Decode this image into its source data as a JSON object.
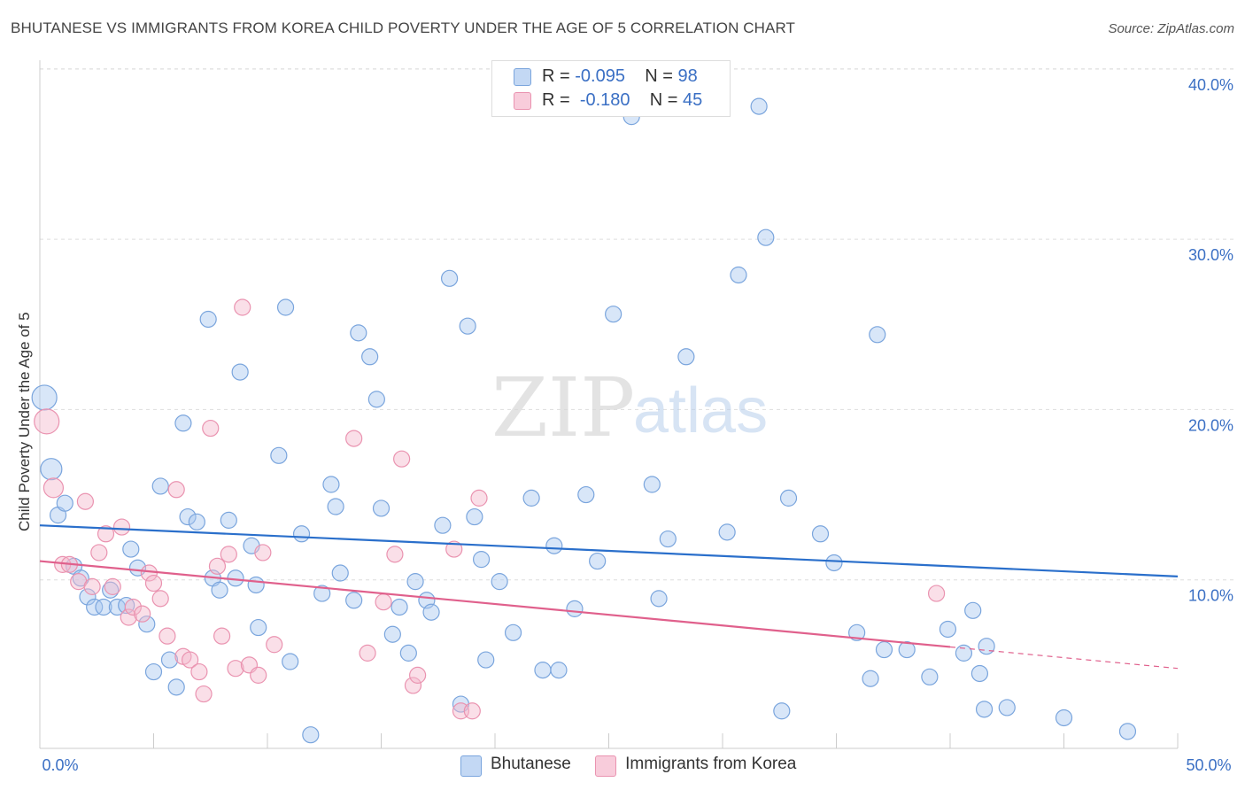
{
  "title": "BHUTANESE VS IMMIGRANTS FROM KOREA CHILD POVERTY UNDER THE AGE OF 5 CORRELATION CHART",
  "source": "Source: ZipAtlas.com",
  "watermark": {
    "zip": "ZIP",
    "atlas": "atlas"
  },
  "legend_top": {
    "rows": [
      {
        "r_label": "R =",
        "r_value": "-0.095",
        "n_label": "N =",
        "n_value": "98"
      },
      {
        "r_label": "R =",
        "r_value": "-0.180",
        "n_label": "N =",
        "n_value": "45"
      }
    ]
  },
  "legend_bottom": {
    "series1": "Bhutanese",
    "series2": "Immigrants from Korea"
  },
  "colors": {
    "blue_fill": "#a9c8f0",
    "blue_stroke": "#7aa5dd",
    "blue_line": "#2a6fcb",
    "pink_fill": "#f5b8cb",
    "pink_stroke": "#ea93b0",
    "pink_line": "#e0608c",
    "tick_label": "#3a6fc4",
    "grid": "#dddddd"
  },
  "chart_data": {
    "type": "scatter",
    "title": "BHUTANESE VS IMMIGRANTS FROM KOREA CHILD POVERTY UNDER THE AGE OF 5 CORRELATION CHART",
    "xlabel": "",
    "ylabel": "Child Poverty Under the Age of 5",
    "xlim": [
      0,
      50
    ],
    "ylim": [
      0,
      40
    ],
    "x_tick_labels": [
      "0.0%",
      "50.0%"
    ],
    "y_ticks": [
      10,
      20,
      30,
      40
    ],
    "y_tick_labels": [
      "10.0%",
      "20.0%",
      "30.0%",
      "40.0%"
    ],
    "grid": true,
    "legend_position": "top-center",
    "series": [
      {
        "name": "Bhutanese",
        "r": -0.095,
        "n": 98,
        "trend": {
          "x": [
            0,
            50
          ],
          "y": [
            13.2,
            10.2
          ],
          "dashed_from": null
        },
        "points": [
          [
            0.2,
            20.7,
            14
          ],
          [
            0.5,
            16.5,
            12
          ],
          [
            0.8,
            13.8,
            9
          ],
          [
            1.1,
            14.5,
            9
          ],
          [
            1.5,
            10.8,
            9
          ],
          [
            1.8,
            10.1,
            9
          ],
          [
            2.1,
            9.0,
            9
          ],
          [
            2.4,
            8.4,
            9
          ],
          [
            2.8,
            8.4,
            9
          ],
          [
            3.1,
            9.4,
            9
          ],
          [
            3.4,
            8.4,
            9
          ],
          [
            3.8,
            8.5,
            9
          ],
          [
            4.0,
            11.8,
            9
          ],
          [
            4.3,
            10.7,
            9
          ],
          [
            4.7,
            7.4,
            9
          ],
          [
            5.0,
            4.6,
            9
          ],
          [
            5.3,
            15.5,
            9
          ],
          [
            5.7,
            5.3,
            9
          ],
          [
            6.0,
            3.7,
            9
          ],
          [
            6.3,
            19.2,
            9
          ],
          [
            6.5,
            13.7,
            9
          ],
          [
            6.9,
            13.4,
            9
          ],
          [
            7.4,
            25.3,
            9
          ],
          [
            7.6,
            10.1,
            9
          ],
          [
            7.9,
            9.4,
            9
          ],
          [
            8.3,
            13.5,
            9
          ],
          [
            8.6,
            10.1,
            9
          ],
          [
            8.8,
            22.2,
            9
          ],
          [
            9.3,
            12.0,
            9
          ],
          [
            9.5,
            9.7,
            9
          ],
          [
            9.6,
            7.2,
            9
          ],
          [
            10.5,
            17.3,
            9
          ],
          [
            10.8,
            26.0,
            9
          ],
          [
            11.0,
            5.2,
            9
          ],
          [
            11.5,
            12.7,
            9
          ],
          [
            11.9,
            0.9,
            9
          ],
          [
            12.4,
            9.2,
            9
          ],
          [
            12.8,
            15.6,
            9
          ],
          [
            13.0,
            14.3,
            9
          ],
          [
            13.2,
            10.4,
            9
          ],
          [
            13.8,
            8.8,
            9
          ],
          [
            14.0,
            24.5,
            9
          ],
          [
            14.5,
            23.1,
            9
          ],
          [
            14.8,
            20.6,
            9
          ],
          [
            15.0,
            14.2,
            9
          ],
          [
            15.5,
            6.8,
            9
          ],
          [
            15.8,
            8.4,
            9
          ],
          [
            16.2,
            5.7,
            9
          ],
          [
            16.5,
            9.9,
            9
          ],
          [
            17.0,
            8.8,
            9
          ],
          [
            17.2,
            8.1,
            9
          ],
          [
            17.7,
            13.2,
            9
          ],
          [
            18.0,
            27.7,
            9
          ],
          [
            18.5,
            2.7,
            9
          ],
          [
            18.8,
            24.9,
            9
          ],
          [
            19.1,
            13.7,
            9
          ],
          [
            19.4,
            11.2,
            9
          ],
          [
            19.6,
            5.3,
            9
          ],
          [
            20.2,
            9.9,
            9
          ],
          [
            20.8,
            6.9,
            9
          ],
          [
            21.6,
            14.8,
            9
          ],
          [
            22.1,
            4.7,
            9
          ],
          [
            22.6,
            12.0,
            9
          ],
          [
            22.8,
            4.7,
            9
          ],
          [
            23.5,
            8.3,
            9
          ],
          [
            24.0,
            15.0,
            9
          ],
          [
            24.5,
            11.1,
            9
          ],
          [
            25.2,
            25.6,
            9
          ],
          [
            26.0,
            37.2,
            9
          ],
          [
            26.9,
            15.6,
            9
          ],
          [
            27.2,
            8.9,
            9
          ],
          [
            27.6,
            12.4,
            9
          ],
          [
            28.4,
            23.1,
            9
          ],
          [
            30.2,
            12.8,
            9
          ],
          [
            30.7,
            27.9,
            9
          ],
          [
            31.6,
            37.8,
            9
          ],
          [
            31.9,
            30.1,
            9
          ],
          [
            32.6,
            2.3,
            9
          ],
          [
            32.9,
            14.8,
            9
          ],
          [
            34.3,
            12.7,
            9
          ],
          [
            34.9,
            11.0,
            9
          ],
          [
            35.9,
            6.9,
            9
          ],
          [
            36.5,
            4.2,
            9
          ],
          [
            36.8,
            24.4,
            9
          ],
          [
            37.1,
            5.9,
            9
          ],
          [
            38.1,
            5.9,
            9
          ],
          [
            39.1,
            4.3,
            9
          ],
          [
            39.9,
            7.1,
            9
          ],
          [
            40.6,
            5.7,
            9
          ],
          [
            41.0,
            8.2,
            9
          ],
          [
            41.3,
            4.5,
            9
          ],
          [
            41.6,
            6.1,
            9
          ],
          [
            41.5,
            2.4,
            9
          ],
          [
            42.5,
            2.5,
            9
          ],
          [
            45.0,
            1.9,
            9
          ],
          [
            47.8,
            1.1,
            9
          ]
        ]
      },
      {
        "name": "Immigrants from Korea",
        "r": -0.18,
        "n": 45,
        "trend": {
          "x": [
            0,
            50
          ],
          "y": [
            11.1,
            4.8
          ],
          "dashed_from": 40
        },
        "points": [
          [
            0.3,
            19.3,
            14
          ],
          [
            0.6,
            15.4,
            11
          ],
          [
            1.0,
            10.9,
            9
          ],
          [
            1.3,
            10.9,
            9
          ],
          [
            1.7,
            9.9,
            9
          ],
          [
            2.0,
            14.6,
            9
          ],
          [
            2.3,
            9.6,
            9
          ],
          [
            2.6,
            11.6,
            9
          ],
          [
            2.9,
            12.7,
            9
          ],
          [
            3.2,
            9.6,
            9
          ],
          [
            3.6,
            13.1,
            9
          ],
          [
            3.9,
            7.8,
            9
          ],
          [
            4.1,
            8.4,
            9
          ],
          [
            4.5,
            8.0,
            9
          ],
          [
            4.8,
            10.4,
            9
          ],
          [
            5.0,
            9.8,
            9
          ],
          [
            5.3,
            8.9,
            9
          ],
          [
            5.6,
            6.7,
            9
          ],
          [
            6.0,
            15.3,
            9
          ],
          [
            6.3,
            5.5,
            9
          ],
          [
            6.6,
            5.3,
            9
          ],
          [
            7.0,
            4.6,
            9
          ],
          [
            7.2,
            3.3,
            9
          ],
          [
            7.5,
            18.9,
            9
          ],
          [
            7.8,
            10.8,
            9
          ],
          [
            8.0,
            6.7,
            9
          ],
          [
            8.3,
            11.5,
            9
          ],
          [
            8.6,
            4.8,
            9
          ],
          [
            8.9,
            26.0,
            9
          ],
          [
            9.2,
            5.0,
            9
          ],
          [
            9.6,
            4.4,
            9
          ],
          [
            9.8,
            11.6,
            9
          ],
          [
            10.3,
            6.2,
            9
          ],
          [
            13.8,
            18.3,
            9
          ],
          [
            14.4,
            5.7,
            9
          ],
          [
            15.1,
            8.7,
            9
          ],
          [
            15.6,
            11.5,
            9
          ],
          [
            15.9,
            17.1,
            9
          ],
          [
            16.4,
            3.8,
            9
          ],
          [
            16.6,
            4.4,
            9
          ],
          [
            18.2,
            11.8,
            9
          ],
          [
            18.5,
            2.3,
            9
          ],
          [
            19.0,
            2.3,
            9
          ],
          [
            19.3,
            14.8,
            9
          ],
          [
            39.4,
            9.2,
            9
          ]
        ]
      }
    ]
  }
}
